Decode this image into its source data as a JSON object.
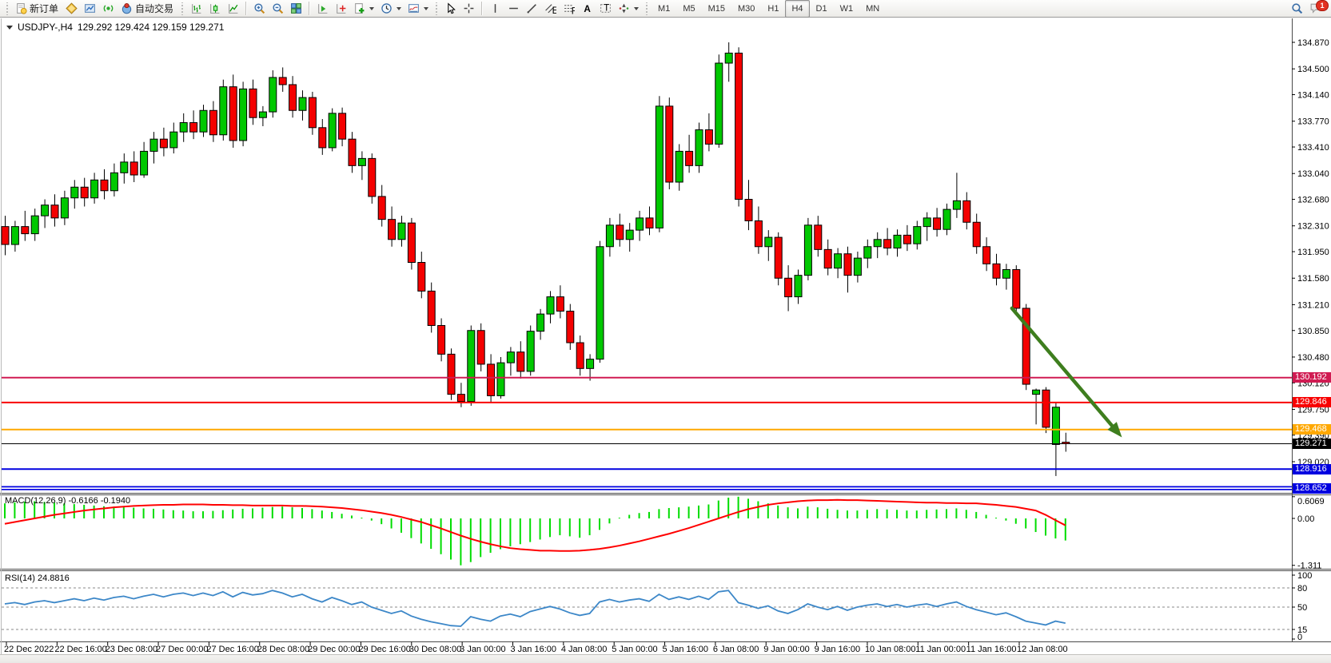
{
  "toolbar": {
    "buttons_left": [
      {
        "name": "new-order",
        "icon": "new-order",
        "label": "新订单"
      },
      {
        "name": "profiles",
        "icon": "profiles",
        "label": ""
      },
      {
        "name": "market-watch",
        "icon": "market-watch",
        "label": ""
      },
      {
        "name": "signals",
        "icon": "signals",
        "label": ""
      },
      {
        "name": "auto-trading",
        "icon": "auto-trading",
        "label": "自动交易"
      }
    ],
    "chart_type_group": [
      {
        "name": "bar-chart",
        "icon": "bar-chart"
      },
      {
        "name": "candlestick-chart",
        "icon": "candlestick-chart"
      },
      {
        "name": "line-chart",
        "icon": "line-chart"
      }
    ],
    "zoom_group": [
      {
        "name": "zoom-in",
        "icon": "zoom-in"
      },
      {
        "name": "zoom-out",
        "icon": "zoom-out"
      },
      {
        "name": "tile-windows",
        "icon": "tile-windows"
      }
    ],
    "indicator_group": [
      {
        "name": "indicators-window",
        "icon": "indicators-window"
      },
      {
        "name": "objects-window",
        "icon": "objects-window"
      },
      {
        "name": "add-indicator",
        "icon": "add-indicator",
        "dropdown": true
      },
      {
        "name": "periods",
        "icon": "periods",
        "dropdown": true
      },
      {
        "name": "templates",
        "icon": "templates",
        "dropdown": true
      }
    ],
    "cursor_group": [
      {
        "name": "cursor",
        "icon": "cursor"
      },
      {
        "name": "crosshair",
        "icon": "crosshair"
      }
    ],
    "draw_group": [
      {
        "name": "vertical-line",
        "icon": "vertical-line"
      },
      {
        "name": "horizontal-line",
        "icon": "horizontal-line"
      },
      {
        "name": "trend-line",
        "icon": "trend-line"
      },
      {
        "name": "equidistant-channel",
        "icon": "equidistant-channel"
      },
      {
        "name": "fibonacci",
        "icon": "fibonacci"
      },
      {
        "name": "text",
        "icon": "text"
      },
      {
        "name": "text-label",
        "icon": "text-label"
      },
      {
        "name": "arrows",
        "icon": "arrows",
        "dropdown": true
      }
    ],
    "timeframes": [
      "M1",
      "M5",
      "M15",
      "M30",
      "H1",
      "H4",
      "D1",
      "W1",
      "MN"
    ],
    "active_timeframe": "H4",
    "right": [
      {
        "name": "search",
        "icon": "search"
      },
      {
        "name": "notifications",
        "icon": "notifications",
        "badge": "1"
      }
    ]
  },
  "chart": {
    "title": {
      "symbol": "USDJPY-,H4",
      "ohlc": "129.292 129.424 129.159 129.271"
    }
  },
  "chart_data": {
    "type": "candlestick",
    "symbol": "USDJPY-",
    "timeframe": "H4",
    "title_ohlc": {
      "open": "129.292",
      "high": "129.424",
      "low": "129.159",
      "close": "129.271"
    },
    "colors": {
      "bull": "#00C800",
      "bear": "#F40000",
      "wick": "#000000",
      "background": "#FFFFFF"
    },
    "price_axis": {
      "visible_range": [
        128.55,
        134.99
      ],
      "ticks": [
        "134.870",
        "134.500",
        "134.140",
        "133.770",
        "133.410",
        "133.040",
        "132.680",
        "132.310",
        "131.950",
        "131.580",
        "131.210",
        "130.850",
        "130.480",
        "130.120",
        "129.750",
        "129.390",
        "129.020"
      ]
    },
    "time_labels": [
      "22 Dec 2022",
      "22 Dec 16:00",
      "23 Dec 08:00",
      "27 Dec 00:00",
      "27 Dec 16:00",
      "28 Dec 08:00",
      "29 Dec 00:00",
      "29 Dec 16:00",
      "30 Dec 08:00",
      "3 Jan 00:00",
      "3 Jan 16:00",
      "4 Jan 08:00",
      "5 Jan 00:00",
      "5 Jan 16:00",
      "6 Jan 08:00",
      "9 Jan 00:00",
      "9 Jan 16:00",
      "10 Jan 08:00",
      "11 Jan 00:00",
      "11 Jan 16:00",
      "12 Jan 08:00"
    ],
    "candles": [
      [
        132.3,
        132.45,
        131.9,
        132.05
      ],
      [
        132.05,
        132.38,
        131.95,
        132.3
      ],
      [
        132.3,
        132.52,
        132.1,
        132.2
      ],
      [
        132.2,
        132.55,
        132.1,
        132.45
      ],
      [
        132.45,
        132.68,
        132.28,
        132.6
      ],
      [
        132.6,
        132.75,
        132.3,
        132.42
      ],
      [
        132.42,
        132.8,
        132.32,
        132.7
      ],
      [
        132.7,
        132.95,
        132.55,
        132.85
      ],
      [
        132.85,
        132.98,
        132.58,
        132.7
      ],
      [
        132.7,
        133.05,
        132.62,
        132.95
      ],
      [
        132.95,
        133.1,
        132.68,
        132.8
      ],
      [
        132.8,
        133.18,
        132.72,
        133.05
      ],
      [
        133.05,
        133.32,
        132.9,
        133.2
      ],
      [
        133.2,
        133.35,
        132.92,
        133.02
      ],
      [
        133.02,
        133.48,
        132.98,
        133.35
      ],
      [
        133.35,
        133.62,
        133.18,
        133.52
      ],
      [
        133.52,
        133.68,
        133.28,
        133.4
      ],
      [
        133.4,
        133.75,
        133.32,
        133.62
      ],
      [
        133.62,
        133.88,
        133.48,
        133.75
      ],
      [
        133.75,
        133.92,
        133.52,
        133.62
      ],
      [
        133.62,
        134.0,
        133.55,
        133.92
      ],
      [
        133.92,
        134.05,
        133.48,
        133.58
      ],
      [
        133.58,
        134.35,
        133.5,
        134.25
      ],
      [
        134.25,
        134.42,
        133.4,
        133.5
      ],
      [
        133.5,
        134.32,
        133.42,
        134.22
      ],
      [
        134.22,
        134.35,
        133.72,
        133.82
      ],
      [
        133.82,
        133.98,
        133.7,
        133.9
      ],
      [
        133.9,
        134.48,
        133.82,
        134.38
      ],
      [
        134.38,
        134.52,
        134.18,
        134.28
      ],
      [
        134.28,
        134.4,
        133.82,
        133.92
      ],
      [
        133.92,
        134.2,
        133.78,
        134.1
      ],
      [
        134.1,
        134.18,
        133.58,
        133.68
      ],
      [
        133.68,
        133.8,
        133.3,
        133.4
      ],
      [
        133.4,
        133.95,
        133.35,
        133.88
      ],
      [
        133.88,
        133.96,
        133.42,
        133.52
      ],
      [
        133.52,
        133.62,
        133.05,
        133.15
      ],
      [
        133.15,
        133.35,
        132.95,
        133.25
      ],
      [
        133.25,
        133.32,
        132.62,
        132.72
      ],
      [
        132.72,
        132.88,
        132.3,
        132.4
      ],
      [
        132.4,
        132.58,
        132.02,
        132.12
      ],
      [
        132.12,
        132.45,
        132.02,
        132.35
      ],
      [
        132.35,
        132.42,
        131.7,
        131.8
      ],
      [
        131.8,
        131.95,
        131.3,
        131.4
      ],
      [
        131.4,
        131.52,
        130.82,
        130.92
      ],
      [
        130.92,
        131.02,
        130.42,
        130.52
      ],
      [
        130.52,
        130.6,
        129.88,
        129.96
      ],
      [
        129.96,
        130.12,
        129.78,
        129.86
      ],
      [
        129.86,
        130.92,
        129.8,
        130.85
      ],
      [
        130.85,
        130.95,
        130.28,
        130.38
      ],
      [
        130.38,
        130.52,
        129.84,
        129.94
      ],
      [
        129.94,
        130.48,
        129.9,
        130.4
      ],
      [
        130.4,
        130.62,
        130.22,
        130.55
      ],
      [
        130.55,
        130.7,
        130.18,
        130.28
      ],
      [
        130.28,
        130.92,
        130.22,
        130.84
      ],
      [
        130.84,
        131.15,
        130.72,
        131.08
      ],
      [
        131.08,
        131.4,
        130.95,
        131.32
      ],
      [
        131.32,
        131.48,
        131.02,
        131.12
      ],
      [
        131.12,
        131.22,
        130.58,
        130.68
      ],
      [
        130.68,
        130.78,
        130.22,
        130.32
      ],
      [
        130.32,
        130.52,
        130.15,
        130.45
      ],
      [
        130.45,
        132.1,
        130.4,
        132.02
      ],
      [
        132.02,
        132.42,
        131.88,
        132.32
      ],
      [
        132.32,
        132.48,
        132.02,
        132.12
      ],
      [
        132.12,
        132.35,
        131.95,
        132.25
      ],
      [
        132.25,
        132.52,
        132.1,
        132.42
      ],
      [
        132.42,
        132.58,
        132.18,
        132.28
      ],
      [
        132.28,
        134.12,
        132.22,
        133.98
      ],
      [
        133.98,
        134.1,
        132.82,
        132.92
      ],
      [
        132.92,
        133.45,
        132.8,
        133.35
      ],
      [
        133.35,
        133.58,
        133.05,
        133.15
      ],
      [
        133.15,
        133.75,
        133.05,
        133.65
      ],
      [
        133.65,
        133.88,
        133.35,
        133.45
      ],
      [
        133.45,
        134.7,
        133.4,
        134.58
      ],
      [
        134.58,
        134.87,
        134.32,
        134.72
      ],
      [
        134.72,
        134.8,
        132.58,
        132.68
      ],
      [
        132.68,
        132.95,
        132.25,
        132.38
      ],
      [
        132.38,
        132.58,
        131.92,
        132.02
      ],
      [
        132.02,
        132.25,
        131.82,
        132.15
      ],
      [
        132.15,
        132.22,
        131.48,
        131.58
      ],
      [
        131.58,
        131.76,
        131.12,
        131.32
      ],
      [
        131.32,
        131.7,
        131.22,
        131.62
      ],
      [
        131.62,
        132.42,
        131.55,
        132.32
      ],
      [
        132.32,
        132.45,
        131.88,
        131.98
      ],
      [
        131.98,
        132.12,
        131.62,
        131.72
      ],
      [
        131.72,
        132.0,
        131.58,
        131.92
      ],
      [
        131.92,
        132.02,
        131.38,
        131.62
      ],
      [
        131.62,
        131.95,
        131.52,
        131.86
      ],
      [
        131.86,
        132.12,
        131.72,
        132.02
      ],
      [
        132.02,
        132.22,
        131.86,
        132.12
      ],
      [
        132.12,
        132.28,
        131.9,
        132.0
      ],
      [
        132.0,
        132.26,
        131.88,
        132.18
      ],
      [
        132.18,
        132.32,
        131.96,
        132.06
      ],
      [
        132.06,
        132.38,
        131.98,
        132.3
      ],
      [
        132.3,
        132.5,
        132.1,
        132.42
      ],
      [
        132.42,
        132.56,
        132.16,
        132.26
      ],
      [
        132.26,
        132.62,
        132.18,
        132.54
      ],
      [
        132.54,
        133.05,
        132.42,
        132.66
      ],
      [
        132.66,
        132.78,
        132.26,
        132.36
      ],
      [
        132.36,
        132.48,
        131.92,
        132.02
      ],
      [
        132.02,
        132.15,
        131.68,
        131.78
      ],
      [
        131.78,
        131.92,
        131.48,
        131.58
      ],
      [
        131.58,
        131.78,
        131.42,
        131.7
      ],
      [
        131.7,
        131.76,
        131.08,
        131.16
      ],
      [
        131.16,
        131.22,
        130.02,
        130.1
      ],
      [
        129.96,
        130.04,
        129.54,
        130.02
      ],
      [
        130.02,
        130.06,
        129.42,
        129.5
      ],
      [
        129.26,
        129.84,
        128.82,
        129.78
      ],
      [
        129.292,
        129.424,
        129.159,
        129.271
      ]
    ],
    "levels": [
      {
        "price": 130.192,
        "label": "130.192",
        "color": "#D01B52",
        "style": "solid",
        "text_color": "#ffffff"
      },
      {
        "price": 129.846,
        "label": "129.846",
        "color": "#F80000",
        "style": "solid",
        "text_color": "#ffffff"
      },
      {
        "price": 129.468,
        "label": "129.468",
        "color": "#FFA800",
        "style": "solid",
        "text_color": "#ffffff"
      },
      {
        "price": 129.271,
        "label": "129.271",
        "color": "#000000",
        "style": "current",
        "text_color": "#ffffff"
      },
      {
        "price": 128.916,
        "label": "128.916",
        "color": "#0000E0",
        "style": "solid",
        "text_color": "#ffffff"
      },
      {
        "price": 128.652,
        "label": "128.652",
        "color": "#0000E0",
        "style": "double",
        "text_color": "#ffffff"
      }
    ],
    "annotation_arrow": {
      "from_bar": 101.6,
      "from_price": 131.16,
      "to_bar": 112.7,
      "to_price": 129.36,
      "color": "#3E7E1E"
    },
    "indicators": {
      "macd": {
        "name": "MACD(12,26,9)",
        "values_text": "-0.6166 -0.1940",
        "histogram_color": "#00DD00",
        "signal_color": "#FF0000",
        "scale": {
          "max": 0.6069,
          "min": -1.311
        },
        "scale_labels": [
          "0.6069",
          "0.00",
          "-1.311"
        ],
        "histogram": [
          0.42,
          0.45,
          0.47,
          0.48,
          0.46,
          0.44,
          0.42,
          0.4,
          0.38,
          0.36,
          0.34,
          0.33,
          0.31,
          0.3,
          0.28,
          0.27,
          0.25,
          0.23,
          0.22,
          0.2,
          0.2,
          0.21,
          0.23,
          0.25,
          0.27,
          0.28,
          0.3,
          0.32,
          0.33,
          0.31,
          0.29,
          0.26,
          0.22,
          0.18,
          0.13,
          0.08,
          0.02,
          -0.06,
          -0.16,
          -0.28,
          -0.4,
          -0.55,
          -0.7,
          -0.85,
          -1.0,
          -1.15,
          -1.31,
          -1.22,
          -1.08,
          -0.96,
          -0.86,
          -0.78,
          -0.72,
          -0.66,
          -0.59,
          -0.52,
          -0.47,
          -0.5,
          -0.54,
          -0.47,
          -0.32,
          -0.14,
          0.02,
          0.1,
          0.15,
          0.18,
          0.26,
          0.29,
          0.31,
          0.33,
          0.36,
          0.39,
          0.5,
          0.58,
          0.6069,
          0.55,
          0.48,
          0.42,
          0.36,
          0.31,
          0.28,
          0.33,
          0.31,
          0.27,
          0.24,
          0.22,
          0.22,
          0.24,
          0.26,
          0.25,
          0.24,
          0.22,
          0.22,
          0.24,
          0.25,
          0.26,
          0.28,
          0.24,
          0.18,
          0.1,
          0.02,
          -0.06,
          -0.15,
          -0.28,
          -0.38,
          -0.48,
          -0.56,
          -0.6166
        ],
        "signal": [
          -0.15,
          -0.1,
          -0.05,
          0.0,
          0.05,
          0.1,
          0.14,
          0.18,
          0.22,
          0.25,
          0.28,
          0.31,
          0.33,
          0.35,
          0.36,
          0.37,
          0.38,
          0.38,
          0.39,
          0.39,
          0.39,
          0.38,
          0.38,
          0.37,
          0.37,
          0.36,
          0.36,
          0.36,
          0.36,
          0.35,
          0.35,
          0.34,
          0.33,
          0.31,
          0.29,
          0.26,
          0.23,
          0.19,
          0.15,
          0.1,
          0.04,
          -0.03,
          -0.1,
          -0.19,
          -0.28,
          -0.38,
          -0.48,
          -0.57,
          -0.65,
          -0.72,
          -0.78,
          -0.83,
          -0.86,
          -0.88,
          -0.9,
          -0.9,
          -0.91,
          -0.91,
          -0.9,
          -0.88,
          -0.85,
          -0.81,
          -0.76,
          -0.7,
          -0.64,
          -0.57,
          -0.5,
          -0.43,
          -0.35,
          -0.27,
          -0.18,
          -0.09,
          0.0,
          0.09,
          0.18,
          0.26,
          0.32,
          0.38,
          0.42,
          0.45,
          0.48,
          0.5,
          0.51,
          0.51,
          0.52,
          0.51,
          0.51,
          0.5,
          0.49,
          0.48,
          0.47,
          0.46,
          0.45,
          0.44,
          0.44,
          0.43,
          0.43,
          0.42,
          0.42,
          0.4,
          0.38,
          0.35,
          0.32,
          0.27,
          0.22,
          0.1,
          -0.05,
          -0.194
        ]
      },
      "rsi": {
        "name": "RSI(14)",
        "value_text": "24.8816",
        "color": "#3C87C8",
        "levels": [
          80,
          50,
          15
        ],
        "scale_labels": [
          "100",
          "80",
          "50",
          "15",
          "0"
        ],
        "values": [
          55,
          57,
          54,
          58,
          60,
          57,
          60,
          63,
          60,
          64,
          61,
          65,
          67,
          63,
          67,
          70,
          66,
          70,
          72,
          68,
          72,
          68,
          74,
          66,
          73,
          69,
          71,
          76,
          72,
          66,
          70,
          63,
          58,
          65,
          60,
          54,
          58,
          50,
          45,
          40,
          44,
          36,
          31,
          27,
          24,
          21,
          20,
          35,
          31,
          28,
          36,
          39,
          35,
          43,
          47,
          51,
          47,
          41,
          37,
          40,
          58,
          62,
          58,
          61,
          63,
          59,
          70,
          62,
          66,
          62,
          67,
          62,
          74,
          76,
          57,
          53,
          48,
          52,
          44,
          40,
          46,
          55,
          50,
          46,
          51,
          45,
          50,
          53,
          55,
          51,
          54,
          50,
          53,
          55,
          51,
          55,
          58,
          51,
          46,
          42,
          38,
          41,
          35,
          28,
          25,
          22,
          28,
          24.88
        ]
      }
    }
  }
}
